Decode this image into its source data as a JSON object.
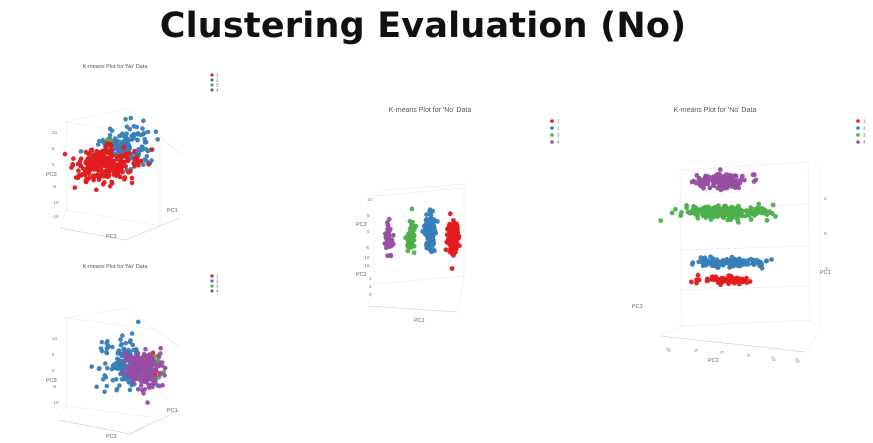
{
  "page": {
    "title": "Clustering Evaluation (No)"
  },
  "colors": {
    "1": "#e41a1c",
    "2": "#377eb8",
    "3": "#4daf4a",
    "4": "#984ea3"
  },
  "chart_data": [
    {
      "type": "scatter",
      "panel": "top-left",
      "title": "K-means Plot for 'No' Data",
      "projection": "3d",
      "legend": {
        "placement": "top-right",
        "entries": [
          "1",
          "2",
          "3",
          "4"
        ]
      },
      "axes": {
        "x": "PC1",
        "y": "PC2",
        "z": "PC3"
      },
      "ticks": {
        "z": [
          "10",
          "5",
          "0",
          "-5",
          "-10",
          "-15"
        ]
      },
      "series": [
        {
          "name": "2",
          "center": [
            0.6,
            0.35
          ],
          "spread": [
            0.28,
            0.26
          ],
          "n": 900
        },
        {
          "name": "3",
          "center": [
            0.4,
            0.3
          ],
          "spread": [
            0.12,
            0.15
          ],
          "n": 50
        },
        {
          "name": "4",
          "center": [
            0.5,
            0.45
          ],
          "spread": [
            0.15,
            0.15
          ],
          "n": 30
        },
        {
          "name": "1",
          "center": [
            0.4,
            0.55
          ],
          "spread": [
            0.35,
            0.22
          ],
          "n": 1400
        }
      ]
    },
    {
      "type": "scatter",
      "panel": "bottom-left",
      "title": "K-means Plot for 'No' Data",
      "projection": "3d",
      "legend": {
        "placement": "top-right",
        "entries": [
          "1",
          "2",
          "3",
          "4"
        ]
      },
      "axes": {
        "x": "PC1",
        "y": "PC2",
        "z": "PC3"
      },
      "ticks": {
        "z": [
          "10",
          "5",
          "0",
          "-5",
          "-10"
        ]
      },
      "series": [
        {
          "name": "1",
          "center": [
            0.7,
            0.45
          ],
          "spread": [
            0.15,
            0.15
          ],
          "n": 60
        },
        {
          "name": "3",
          "center": [
            0.72,
            0.55
          ],
          "spread": [
            0.14,
            0.18
          ],
          "n": 140
        },
        {
          "name": "2",
          "center": [
            0.42,
            0.5
          ],
          "spread": [
            0.25,
            0.3
          ],
          "n": 900
        },
        {
          "name": "4",
          "center": [
            0.6,
            0.55
          ],
          "spread": [
            0.22,
            0.25
          ],
          "n": 1100
        }
      ]
    },
    {
      "type": "scatter",
      "panel": "middle",
      "title": "K-means Plot for 'No' Data",
      "projection": "3d",
      "legend": {
        "placement": "top-right",
        "entries": [
          "1",
          "2",
          "3",
          "4"
        ]
      },
      "axes": {
        "x": "PC1",
        "y": "PC2",
        "z": "PC3"
      },
      "ticks": {
        "z": [
          "10",
          "5",
          "0",
          "-5",
          "-10",
          "-15"
        ],
        "y": [
          "4",
          "2",
          "0"
        ]
      },
      "series": [
        {
          "name": "4",
          "center": [
            0.12,
            0.48
          ],
          "spread": [
            0.05,
            0.28
          ],
          "n": 250
        },
        {
          "name": "3",
          "center": [
            0.37,
            0.42
          ],
          "spread": [
            0.06,
            0.28
          ],
          "n": 300
        },
        {
          "name": "2",
          "center": [
            0.58,
            0.35
          ],
          "spread": [
            0.07,
            0.33
          ],
          "n": 700
        },
        {
          "name": "1",
          "center": [
            0.84,
            0.45
          ],
          "spread": [
            0.07,
            0.3
          ],
          "n": 700
        }
      ]
    },
    {
      "type": "scatter",
      "panel": "right",
      "title": "K-means Plot for 'No' Data",
      "projection": "3d",
      "legend": {
        "placement": "top-right",
        "entries": [
          "1",
          "2",
          "3",
          "4"
        ]
      },
      "axes": {
        "x": "PC1",
        "y": "PC2",
        "z": "PC3"
      },
      "ticks": {
        "pc2": [
          "10",
          "5",
          "0",
          "-5",
          "-10",
          "-15"
        ],
        "pc1": [
          "2",
          "0",
          "-2"
        ]
      },
      "series": [
        {
          "name": "4",
          "center": [
            0.4,
            0.13
          ],
          "spread": [
            0.17,
            0.06
          ],
          "n": 700
        },
        {
          "name": "3",
          "center": [
            0.42,
            0.33
          ],
          "spread": [
            0.28,
            0.05
          ],
          "n": 1200
        },
        {
          "name": "2",
          "center": [
            0.42,
            0.64
          ],
          "spread": [
            0.22,
            0.035
          ],
          "n": 700
        },
        {
          "name": "1",
          "center": [
            0.42,
            0.75
          ],
          "spread": [
            0.18,
            0.028
          ],
          "n": 500
        }
      ]
    }
  ]
}
